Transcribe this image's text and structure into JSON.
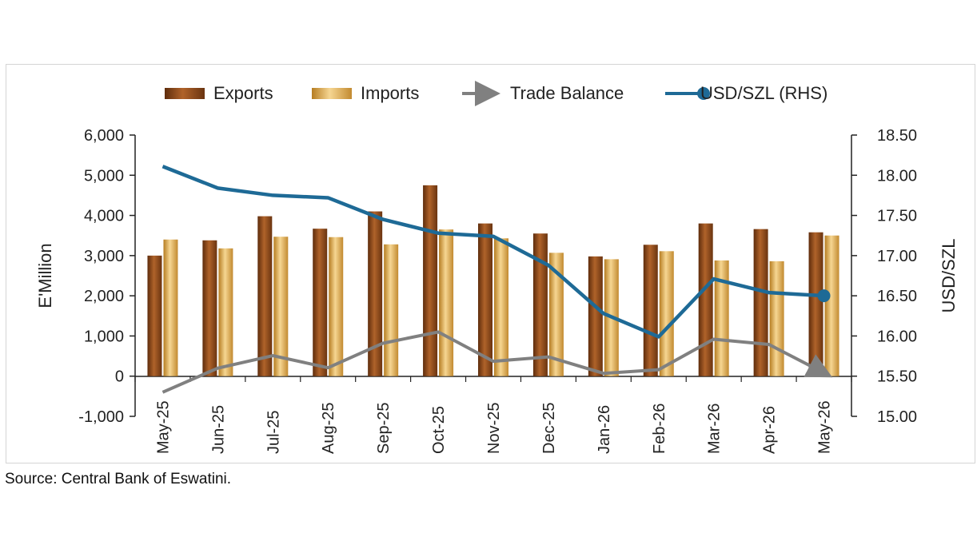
{
  "source_note": "Source: Central Bank of Eswatini.",
  "colors": {
    "exports": "#8b4a1c",
    "imports": "#e2b054",
    "trade_balance": "#808080",
    "usd_szl": "#1e6a96"
  },
  "chart_data": {
    "type": "bar",
    "categories": [
      "May-25",
      "Jun-25",
      "Jul-25",
      "Aug-25",
      "Sep-25",
      "Oct-25",
      "Nov-25",
      "Dec-25",
      "Jan-26",
      "Feb-26",
      "Mar-26",
      "Apr-26",
      "May-26"
    ],
    "series": [
      {
        "name": "Exports",
        "type": "bar",
        "axis": "left",
        "values": [
          3000,
          3380,
          3980,
          3670,
          4100,
          4750,
          3800,
          3550,
          2980,
          3270,
          3800,
          3660,
          3580
        ]
      },
      {
        "name": "Imports",
        "type": "bar",
        "axis": "left",
        "values": [
          3400,
          3180,
          3470,
          3460,
          3280,
          3650,
          3430,
          3070,
          2910,
          3110,
          2880,
          2860,
          3500
        ]
      },
      {
        "name": "Trade Balance",
        "type": "line",
        "axis": "left",
        "values": [
          -400,
          200,
          510,
          210,
          820,
          1100,
          370,
          480,
          70,
          160,
          920,
          790,
          80
        ]
      },
      {
        "name": "USD/SZL (RHS)",
        "type": "line",
        "axis": "right",
        "values": [
          18.11,
          17.84,
          17.75,
          17.72,
          17.45,
          17.28,
          17.24,
          16.88,
          16.28,
          15.99,
          16.71,
          16.54,
          16.5
        ]
      }
    ],
    "legend": [
      "Exports",
      "Imports",
      "Trade Balance",
      "USD/SZL (RHS)"
    ],
    "legend_position": "top",
    "ylabel": "E'Million",
    "y2label": "USD/SZL",
    "ylim": [
      -1000,
      6000
    ],
    "y2lim": [
      15.0,
      18.5
    ],
    "yticks": [
      "-1,000",
      "0",
      "1,000",
      "2,000",
      "3,000",
      "4,000",
      "5,000",
      "6,000"
    ],
    "y2ticks": [
      "15.00",
      "15.50",
      "16.00",
      "16.50",
      "17.00",
      "17.50",
      "18.00",
      "18.50"
    ],
    "grid": false
  }
}
